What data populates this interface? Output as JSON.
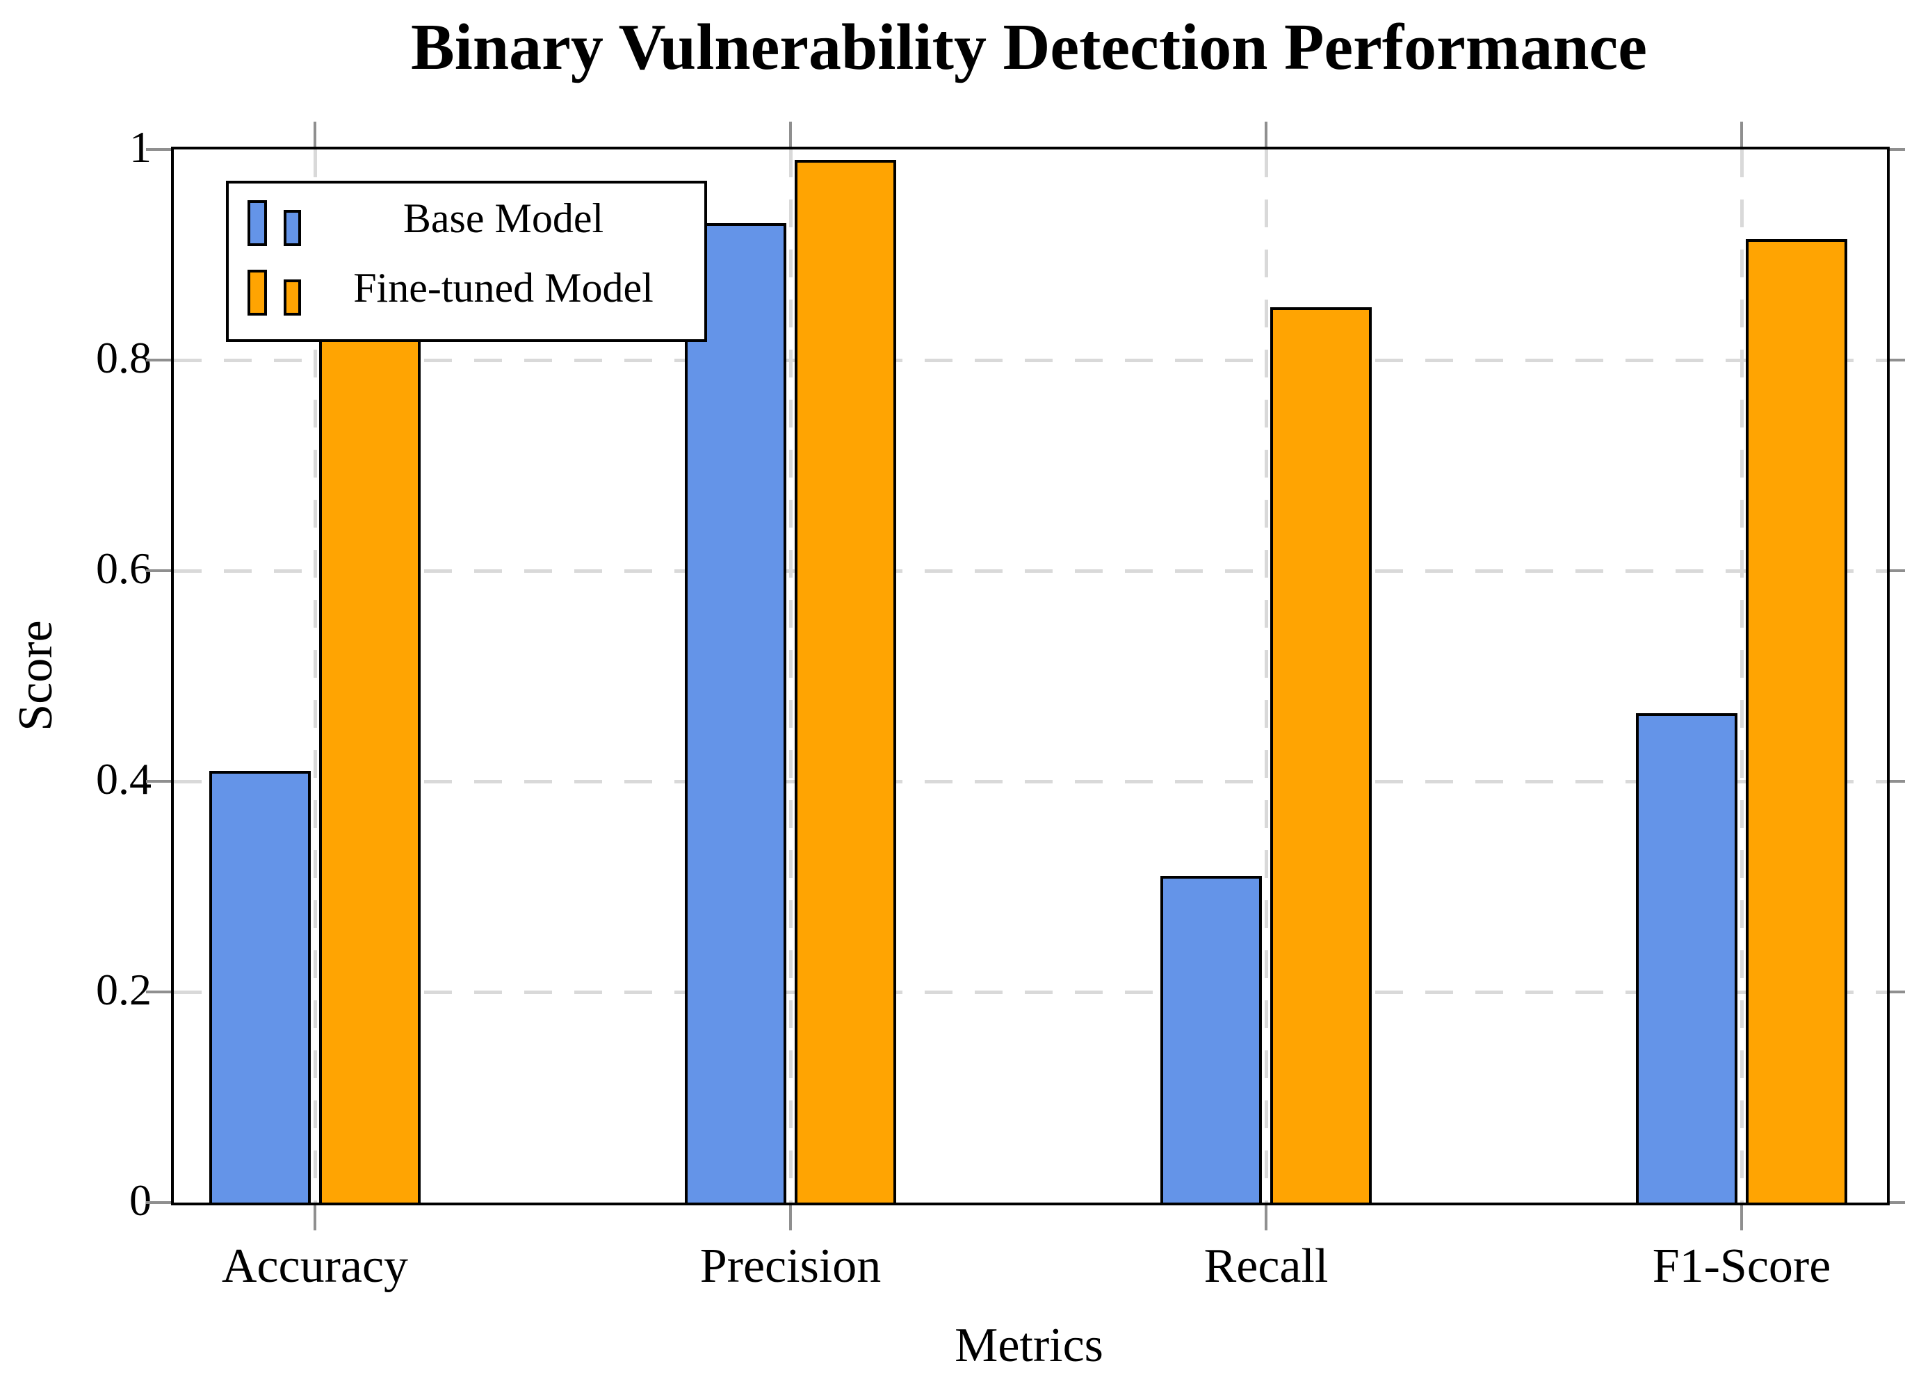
{
  "chart_data": {
    "type": "bar",
    "title": "Binary Vulnerability Detection Performance",
    "xlabel": "Metrics",
    "ylabel": "Score",
    "categories": [
      "Accuracy",
      "Precision",
      "Recall",
      "F1-Score"
    ],
    "series": [
      {
        "name": "Base Model",
        "color": "#6494E8",
        "values": [
          0.41,
          0.93,
          0.31,
          0.465
        ]
      },
      {
        "name": "Fine-tuned Model",
        "color": "#FFA402",
        "values": [
          0.86,
          0.99,
          0.85,
          0.915
        ]
      }
    ],
    "ylim": [
      0,
      1
    ],
    "yticks": [
      0,
      0.2,
      0.4,
      0.6,
      0.8,
      1
    ],
    "ytick_labels": [
      "0",
      "0.2",
      "0.4",
      "0.6",
      "0.8",
      "1"
    ],
    "grid": "dashed horizontal and vertical gridlines at ticks",
    "legend_position": "top-left inside plot area",
    "note_occlusion": "top of Fine-tuned Accuracy bar is hidden behind the legend box (value estimated)",
    "style": {
      "axis_color": "#000000",
      "bar_border_color": "#000000",
      "grid_color": "#D9D9D9",
      "tick_color": "#8F8F8F",
      "background": "#FFFFFF"
    }
  }
}
